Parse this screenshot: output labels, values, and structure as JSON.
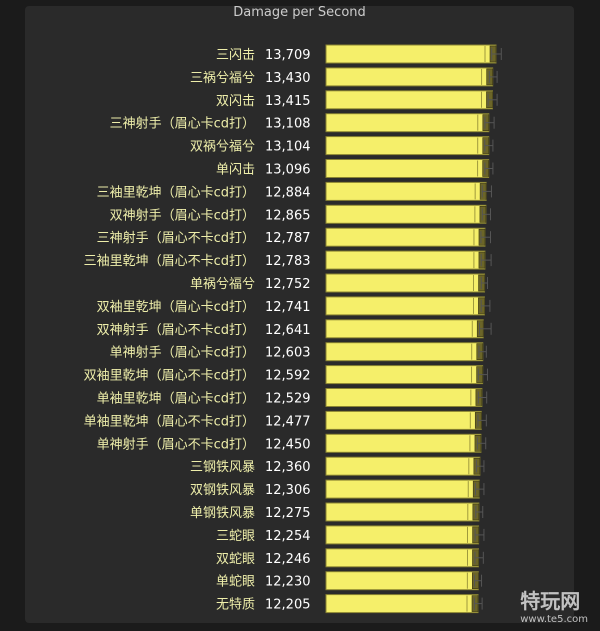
{
  "chart_data": {
    "type": "bar",
    "orientation": "horizontal",
    "title": "Damage per Second",
    "xlabel": "",
    "ylabel": "",
    "grid": false,
    "legend": "none",
    "colors": {
      "bar": "#f5ef6a",
      "bar_edge": "#8a8432",
      "cap": "#6b6528",
      "label": "#eeeeaa",
      "value": "#ffffff",
      "whisker": "#555555",
      "panel": "#2a2a2a",
      "background": "#1b1b1b"
    },
    "categories": [
      "三闪击",
      "三祸兮福兮",
      "双闪击",
      "三神射手（眉心卡cd打）",
      "双祸兮福兮",
      "单闪击",
      "三袖里乾坤（眉心卡cd打）",
      "双神射手（眉心卡cd打）",
      "三神射手（眉心不卡cd打）",
      "三袖里乾坤（眉心不卡cd打）",
      "单祸兮福兮",
      "双袖里乾坤（眉心卡cd打）",
      "双神射手（眉心不卡cd打）",
      "单神射手（眉心卡cd打）",
      "双袖里乾坤（眉心不卡cd打）",
      "单袖里乾坤（眉心卡cd打）",
      "单袖里乾坤（眉心不卡cd打）",
      "单神射手（眉心不卡cd打）",
      "三钢铁风暴",
      "双钢铁风暴",
      "单钢铁风暴",
      "三蛇眼",
      "双蛇眼",
      "单蛇眼",
      "无特质"
    ],
    "value_labels": [
      "13,709",
      "13,430",
      "13,415",
      "13,108",
      "13,104",
      "13,096",
      "12,884",
      "12,865",
      "12,787",
      "12,783",
      "12,752",
      "12,741",
      "12,641",
      "12,603",
      "12,592",
      "12,529",
      "12,477",
      "12,450",
      "12,360",
      "12,306",
      "12,275",
      "12,254",
      "12,246",
      "12,230",
      "12,205"
    ],
    "values": [
      13709,
      13430,
      13415,
      13108,
      13104,
      13096,
      12884,
      12865,
      12787,
      12783,
      12752,
      12741,
      12641,
      12603,
      12592,
      12529,
      12477,
      12450,
      12360,
      12306,
      12275,
      12254,
      12246,
      12230,
      12205
    ],
    "error_low": [
      13350,
      13150,
      13050,
      12780,
      12770,
      12780,
      12560,
      12560,
      12450,
      12470,
      12480,
      12470,
      12330,
      12280,
      12230,
      12230,
      12200,
      12150,
      12070,
      11990,
      12020,
      11960,
      11950,
      11920,
      11900
    ],
    "error_high": [
      14150,
      13800,
      13800,
      13550,
      13450,
      13450,
      13330,
      13250,
      13250,
      13300,
      13000,
      13200,
      13300,
      12900,
      13000,
      12930,
      12900,
      12850,
      12700,
      12700,
      12600,
      12700,
      12650,
      12500,
      12550
    ]
  }
}
